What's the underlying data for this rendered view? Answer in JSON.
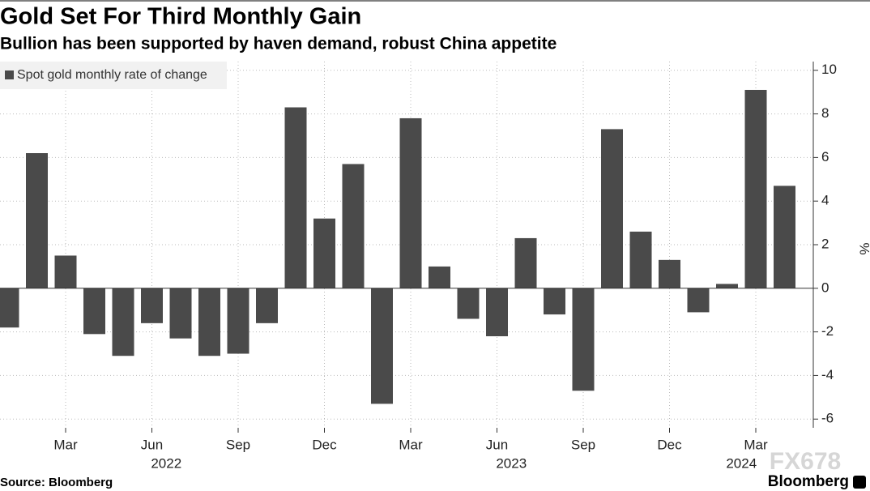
{
  "chart_data": {
    "type": "bar",
    "title": "Gold Set For Third Monthly Gain",
    "subtitle": "Bullion has been supported by haven demand, robust China appetite",
    "source": "Source: Bloomberg",
    "brand": "Bloomberg",
    "watermark": "FX678",
    "y_label": "%",
    "categories": [
      null,
      null,
      "Mar",
      null,
      null,
      "Jun",
      null,
      null,
      "Sep",
      null,
      null,
      "Dec",
      null,
      null,
      "Mar",
      null,
      null,
      "Jun",
      null,
      null,
      "Sep",
      null,
      null,
      "Dec",
      null,
      null,
      "Mar",
      null
    ],
    "x_groups": [
      {
        "label": "2022",
        "span": 12
      },
      {
        "label": "2023",
        "span": 12
      },
      {
        "label": "2024",
        "span": 4
      }
    ],
    "series": [
      {
        "name": "Spot gold monthly rate of change",
        "color": "#4a4a4a",
        "values": [
          -1.8,
          6.2,
          1.5,
          -2.1,
          -3.1,
          -1.6,
          -2.3,
          -3.1,
          -3.0,
          -1.6,
          8.3,
          3.2,
          5.7,
          -5.3,
          7.8,
          1.0,
          -1.4,
          -2.2,
          2.3,
          -1.2,
          -4.7,
          7.3,
          2.6,
          1.3,
          -1.1,
          0.2,
          9.1,
          4.7
        ]
      }
    ],
    "ylim": [
      -6.4,
      10.4
    ],
    "yticks": [
      -6,
      -4,
      -2,
      0,
      2,
      4,
      6,
      8,
      10
    ],
    "grid": true,
    "legend": "top-left"
  }
}
